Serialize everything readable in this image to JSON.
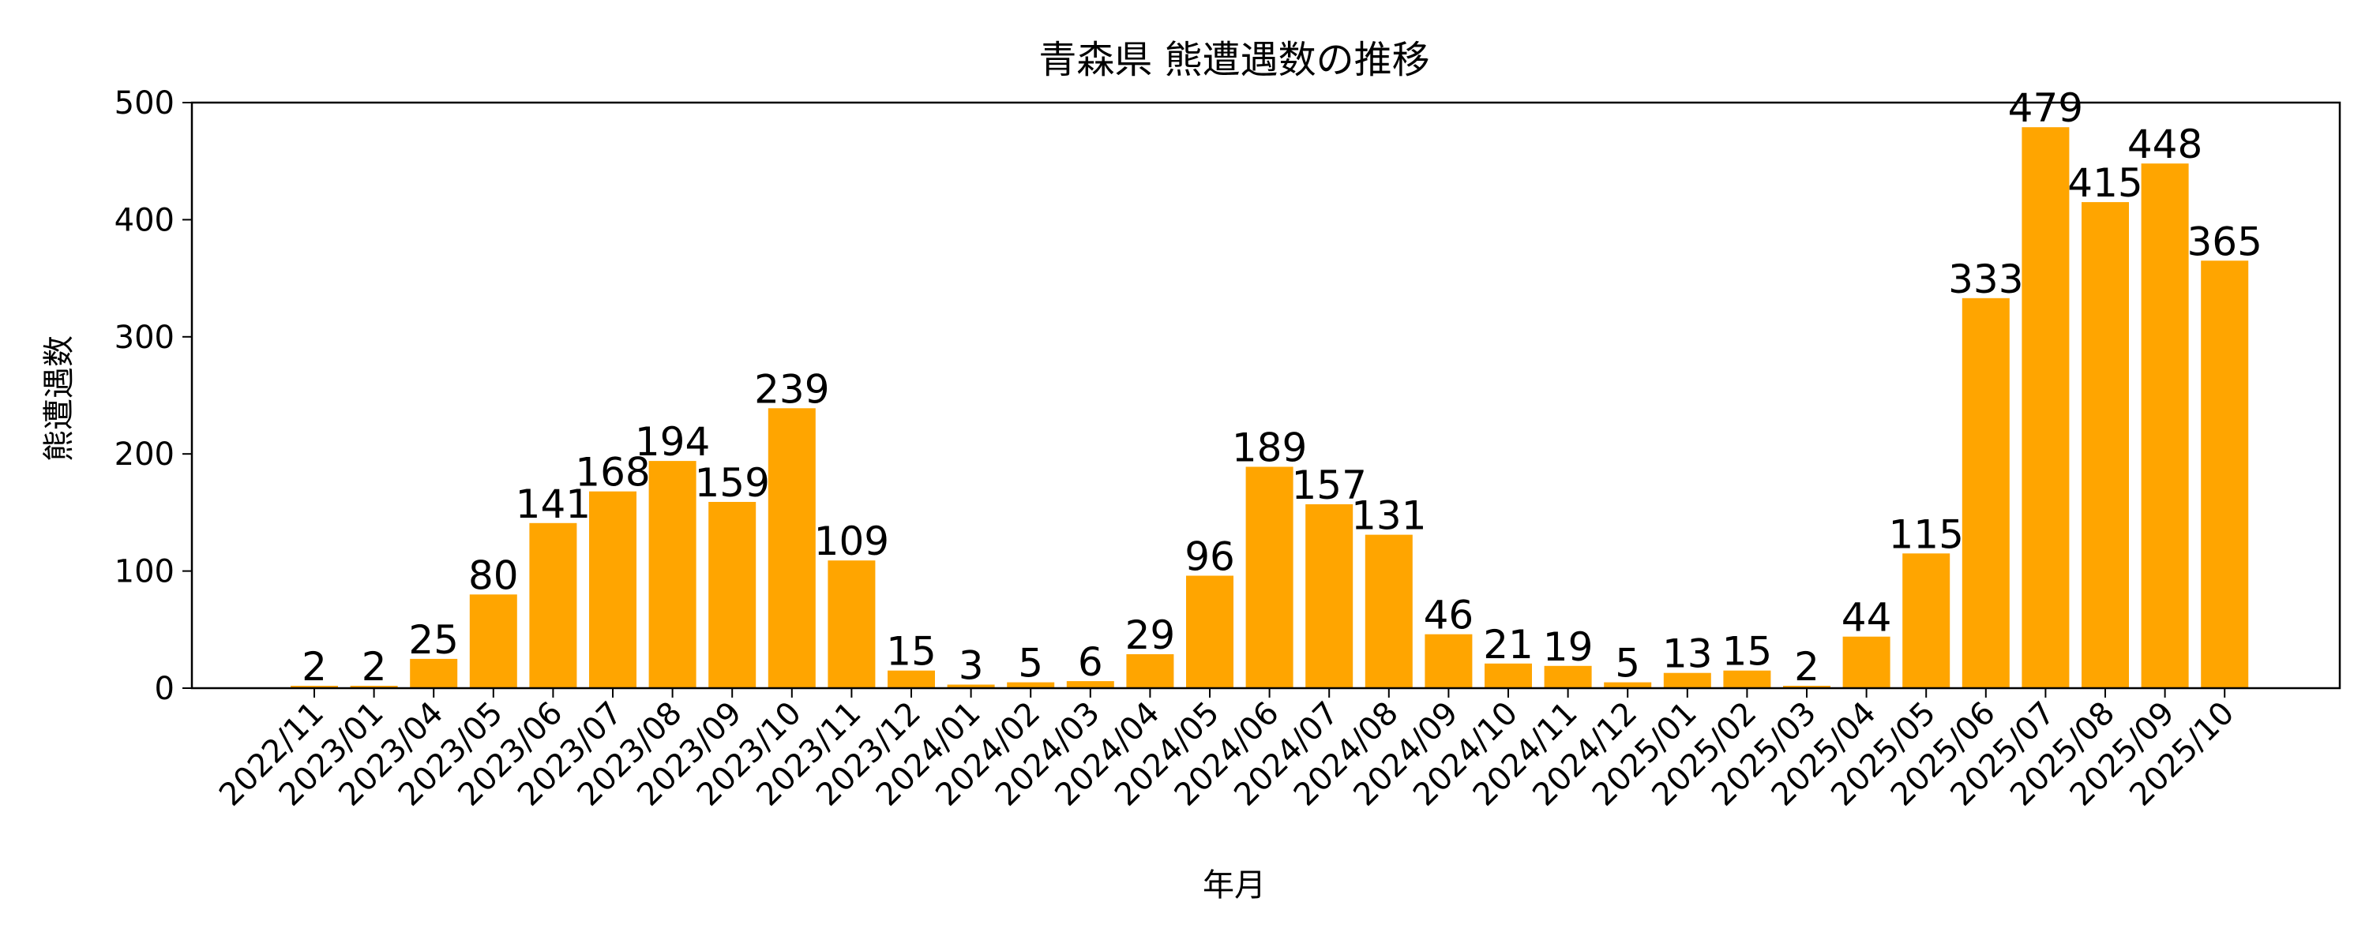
{
  "chart_data": {
    "type": "bar",
    "title": "青森県 熊遭遇数の推移",
    "xlabel": "年月",
    "ylabel": "熊遭遇数",
    "ylim": [
      0,
      500
    ],
    "yticks": [
      0,
      100,
      200,
      300,
      400,
      500
    ],
    "grid": false,
    "legend": "none",
    "bar_color": "#FFA500",
    "categories": [
      "2022/11",
      "2023/01",
      "2023/04",
      "2023/05",
      "2023/06",
      "2023/07",
      "2023/08",
      "2023/09",
      "2023/10",
      "2023/11",
      "2023/12",
      "2024/01",
      "2024/02",
      "2024/03",
      "2024/04",
      "2024/05",
      "2024/06",
      "2024/07",
      "2024/08",
      "2024/09",
      "2024/10",
      "2024/11",
      "2024/12",
      "2025/01",
      "2025/02",
      "2025/03",
      "2025/04",
      "2025/05",
      "2025/06",
      "2025/07",
      "2025/08",
      "2025/09",
      "2025/10"
    ],
    "values": [
      2,
      2,
      25,
      80,
      141,
      168,
      194,
      159,
      239,
      109,
      15,
      3,
      5,
      6,
      29,
      96,
      189,
      157,
      131,
      46,
      21,
      19,
      5,
      13,
      15,
      2,
      44,
      115,
      333,
      479,
      415,
      448,
      365
    ]
  }
}
